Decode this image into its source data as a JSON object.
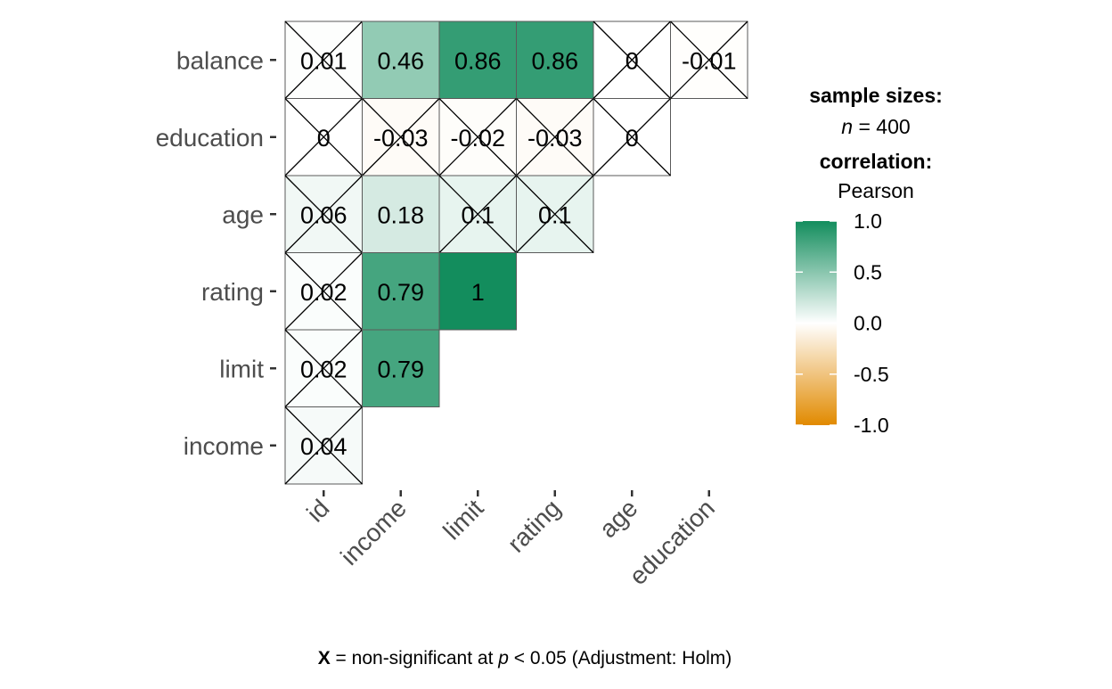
{
  "chart_data": {
    "type": "heatmap",
    "title": "",
    "x_categories": [
      "id",
      "income",
      "limit",
      "rating",
      "age",
      "education"
    ],
    "y_categories": [
      "balance",
      "education",
      "age",
      "rating",
      "limit",
      "income"
    ],
    "cells": [
      {
        "row": "balance",
        "col": "id",
        "value": 0.01,
        "label": "0.01",
        "significant": false
      },
      {
        "row": "balance",
        "col": "income",
        "value": 0.46,
        "label": "0.46",
        "significant": true
      },
      {
        "row": "balance",
        "col": "limit",
        "value": 0.86,
        "label": "0.86",
        "significant": true
      },
      {
        "row": "balance",
        "col": "rating",
        "value": 0.86,
        "label": "0.86",
        "significant": true
      },
      {
        "row": "balance",
        "col": "age",
        "value": 0,
        "label": "0",
        "significant": false
      },
      {
        "row": "balance",
        "col": "education",
        "value": -0.01,
        "label": "-0.01",
        "significant": false
      },
      {
        "row": "education",
        "col": "id",
        "value": 0,
        "label": "0",
        "significant": false
      },
      {
        "row": "education",
        "col": "income",
        "value": -0.03,
        "label": "-0.03",
        "significant": false
      },
      {
        "row": "education",
        "col": "limit",
        "value": -0.02,
        "label": "-0.02",
        "significant": false
      },
      {
        "row": "education",
        "col": "rating",
        "value": -0.03,
        "label": "-0.03",
        "significant": false
      },
      {
        "row": "education",
        "col": "age",
        "value": 0,
        "label": "0",
        "significant": false
      },
      {
        "row": "age",
        "col": "id",
        "value": 0.06,
        "label": "0.06",
        "significant": false
      },
      {
        "row": "age",
        "col": "income",
        "value": 0.18,
        "label": "0.18",
        "significant": true
      },
      {
        "row": "age",
        "col": "limit",
        "value": 0.1,
        "label": "0.1",
        "significant": false
      },
      {
        "row": "age",
        "col": "rating",
        "value": 0.1,
        "label": "0.1",
        "significant": false
      },
      {
        "row": "rating",
        "col": "id",
        "value": 0.02,
        "label": "0.02",
        "significant": false
      },
      {
        "row": "rating",
        "col": "income",
        "value": 0.79,
        "label": "0.79",
        "significant": true
      },
      {
        "row": "rating",
        "col": "limit",
        "value": 1,
        "label": "1",
        "significant": true
      },
      {
        "row": "limit",
        "col": "id",
        "value": 0.02,
        "label": "0.02",
        "significant": false
      },
      {
        "row": "limit",
        "col": "income",
        "value": 0.79,
        "label": "0.79",
        "significant": true
      },
      {
        "row": "income",
        "col": "id",
        "value": 0.04,
        "label": "0.04",
        "significant": false
      }
    ],
    "colorscale": {
      "low": "#E18A00",
      "mid": "#FFFFFF",
      "high": "#138D5D",
      "min": -1,
      "max": 1
    },
    "legend": {
      "title_1": "sample sizes:",
      "n_symbol": "n",
      "n_text": " = 400",
      "title_2": "correlation:",
      "method": "Pearson",
      "ticks": [
        {
          "value": 1.0,
          "label": "1.0"
        },
        {
          "value": 0.5,
          "label": "0.5"
        },
        {
          "value": 0.0,
          "label": "0.0"
        },
        {
          "value": -0.5,
          "label": "-0.5"
        },
        {
          "value": -1.0,
          "label": "-1.0"
        }
      ],
      "placement": "right"
    },
    "caption": {
      "x_symbol": "X",
      "text_1": " = non-significant at ",
      "p_symbol": "p",
      "text_2": " < 0.05 (Adjustment: Holm)"
    }
  }
}
